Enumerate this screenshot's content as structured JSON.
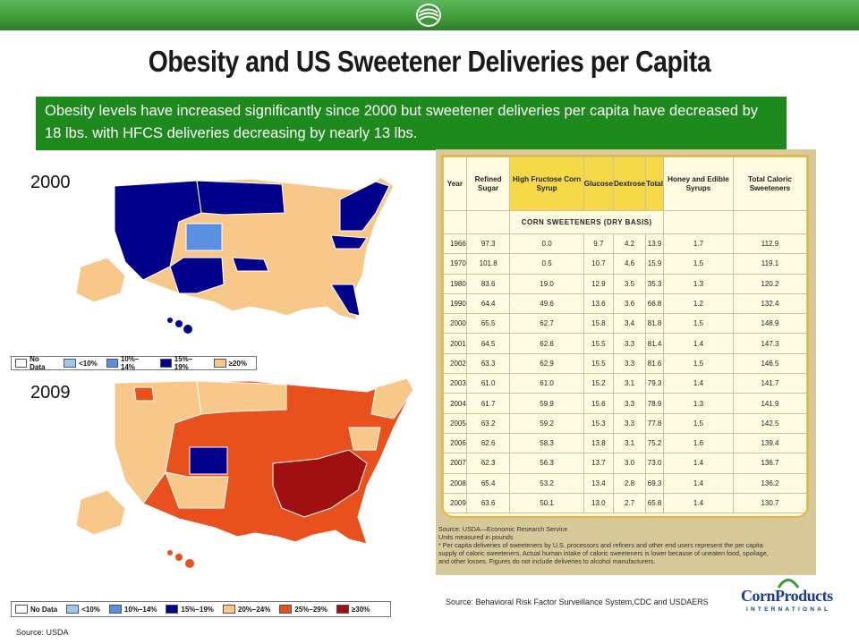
{
  "slide": {
    "title": "Obesity and US Sweetener Deliveries per Capita",
    "banner": "Obesity levels have increased significantly since 2000 but sweetener deliveries per capita have decreased by 18 lbs. with HFCS deliveries decreasing by nearly 13 lbs.",
    "source_maps": "Source: Behavioral Risk Factor Surveillance System,CDC and USDAERS",
    "source_usda": "Source: USDA",
    "brand": {
      "name": "CornProducts",
      "tagline": "INTERNATIONAL"
    }
  },
  "maps": [
    {
      "year": "2000",
      "legend": [
        {
          "label": "No Data",
          "color": "#ffffff"
        },
        {
          "label": "<10%",
          "color": "#9cc8f0"
        },
        {
          "label": "10%–14%",
          "color": "#5b8fe0"
        },
        {
          "label": "15%–19%",
          "color": "#00008b"
        },
        {
          "label": "≥20%",
          "color": "#f8c88a"
        }
      ]
    },
    {
      "year": "2009",
      "legend": [
        {
          "label": "No Data",
          "color": "#ffffff"
        },
        {
          "label": "<10%",
          "color": "#9cc8f0"
        },
        {
          "label": "10%–14%",
          "color": "#5b8fe0"
        },
        {
          "label": "15%–19%",
          "color": "#00008b"
        },
        {
          "label": "20%–24%",
          "color": "#f8c88a"
        },
        {
          "label": "25%–29%",
          "color": "#e8501e"
        },
        {
          "label": "≥30%",
          "color": "#a01010"
        }
      ]
    }
  ],
  "table": {
    "headers": [
      "Year",
      "Refined Sugar",
      "High Fructose Corn Syrup",
      "Glucose",
      "Dextrose",
      "Total",
      "Honey and Edible Syrups",
      "Total Caloric Sweeteners"
    ],
    "subhead": "CORN SWEETENERS (DRY BASIS)",
    "rows": [
      [
        "1966",
        "97.3",
        "0.0",
        "9.7",
        "4.2",
        "13.9",
        "1.7",
        "112.9"
      ],
      [
        "1970",
        "101.8",
        "0.5",
        "10.7",
        "4.6",
        "15.9",
        "1.5",
        "119.1"
      ],
      [
        "1980",
        "83.6",
        "19.0",
        "12.9",
        "3.5",
        "35.3",
        "1.3",
        "120.2"
      ],
      [
        "1990",
        "64.4",
        "49.6",
        "13.6",
        "3.6",
        "66.8",
        "1.2",
        "132.4"
      ],
      [
        "2000",
        "65.5",
        "62.7",
        "15.8",
        "3.4",
        "81.8",
        "1.5",
        "148.9"
      ],
      [
        "2001",
        "64.5",
        "62.6",
        "15.5",
        "3.3",
        "81.4",
        "1.4",
        "147.3"
      ],
      [
        "2002",
        "63.3",
        "62.9",
        "15.5",
        "3.3",
        "81.6",
        "1.5",
        "146.5"
      ],
      [
        "2003",
        "61.0",
        "61.0",
        "15.2",
        "3.1",
        "79.3",
        "1.4",
        "141.7"
      ],
      [
        "2004",
        "61.7",
        "59.9",
        "15.6",
        "3.3",
        "78.9",
        "1.3",
        "141.9"
      ],
      [
        "2005",
        "63.2",
        "59.2",
        "15.3",
        "3.3",
        "77.8",
        "1.5",
        "142.5"
      ],
      [
        "2006",
        "62.6",
        "58.3",
        "13.8",
        "3.1",
        "75.2",
        "1.6",
        "139.4"
      ],
      [
        "2007",
        "62.3",
        "56.3",
        "13.7",
        "3.0",
        "73.0",
        "1.4",
        "136.7"
      ],
      [
        "2008",
        "65.4",
        "53.2",
        "13.4",
        "2.8",
        "69.3",
        "1.4",
        "136.2"
      ],
      [
        "2009",
        "63.6",
        "50.1",
        "13.0",
        "2.7",
        "65.8",
        "1.4",
        "130.7"
      ]
    ],
    "source_lines": [
      "Source: USDA—Economic Research Service",
      "Units measured in pounds",
      "* Per capita deliveries of sweeteners by U.S. processors and refiners and other end users represent the per capita",
      "supply of caloric sweeteners. Actual human intake of caloric sweeteners is lower because of uneaten food, spoilage,",
      "and other losses. Figures do not include deliveries to alcohol manufacturers."
    ]
  }
}
